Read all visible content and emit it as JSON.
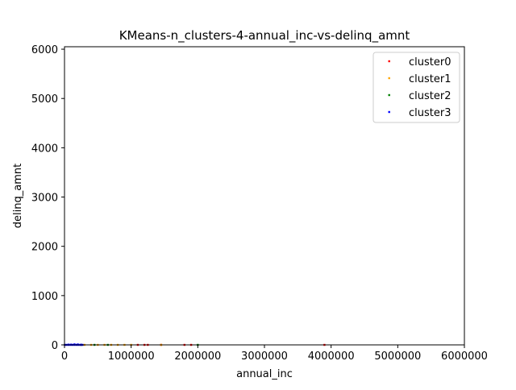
{
  "chart_data": {
    "type": "scatter",
    "title": "KMeans-n_clusters-4-annual_inc-vs-delinq_amnt",
    "xlabel": "annual_inc",
    "ylabel": "delinq_amnt",
    "xlim": [
      0,
      6000000
    ],
    "ylim": [
      0,
      6050
    ],
    "xticks": [
      0,
      1000000,
      2000000,
      3000000,
      4000000,
      5000000,
      6000000
    ],
    "xtick_labels": [
      "0",
      "1000000",
      "2000000",
      "3000000",
      "4000000",
      "5000000",
      "6000000"
    ],
    "yticks": [
      0,
      1000,
      2000,
      3000,
      4000,
      5000,
      6000
    ],
    "ytick_labels": [
      "0",
      "1000",
      "2000",
      "3000",
      "4000",
      "5000",
      "6000"
    ],
    "grid": false,
    "legend_position": "top-right",
    "series": [
      {
        "name": "cluster0",
        "color": "#ff0000",
        "points": [
          [
            1200000,
            0
          ],
          [
            1250000,
            0
          ],
          [
            1800000,
            0
          ],
          [
            1900000,
            0
          ],
          [
            3900000,
            0
          ],
          [
            1100000,
            0
          ],
          [
            1450000,
            0
          ]
        ]
      },
      {
        "name": "cluster1",
        "color": "#ffa500",
        "points": [
          [
            300000,
            0
          ],
          [
            400000,
            0
          ],
          [
            500000,
            0
          ],
          [
            600000,
            0
          ],
          [
            700000,
            0
          ],
          [
            800000,
            0
          ],
          [
            900000,
            0
          ],
          [
            1000000,
            0
          ],
          [
            1450000,
            0
          ]
        ]
      },
      {
        "name": "cluster2",
        "color": "#008000",
        "points": [
          [
            250000,
            0
          ],
          [
            450000,
            0
          ],
          [
            650000,
            0
          ],
          [
            2000000,
            0
          ]
        ]
      },
      {
        "name": "cluster3",
        "color": "#0000ff",
        "points": [
          [
            5000,
            0
          ],
          [
            30000,
            0
          ],
          [
            60000,
            0
          ],
          [
            90000,
            0
          ],
          [
            120000,
            0
          ],
          [
            150000,
            0
          ],
          [
            180000,
            0
          ],
          [
            210000,
            0
          ],
          [
            240000,
            0
          ],
          [
            270000,
            0
          ],
          [
            60000,
            5
          ],
          [
            100000,
            5
          ],
          [
            150000,
            10
          ],
          [
            200000,
            8
          ],
          [
            250000,
            3
          ]
        ]
      }
    ]
  }
}
